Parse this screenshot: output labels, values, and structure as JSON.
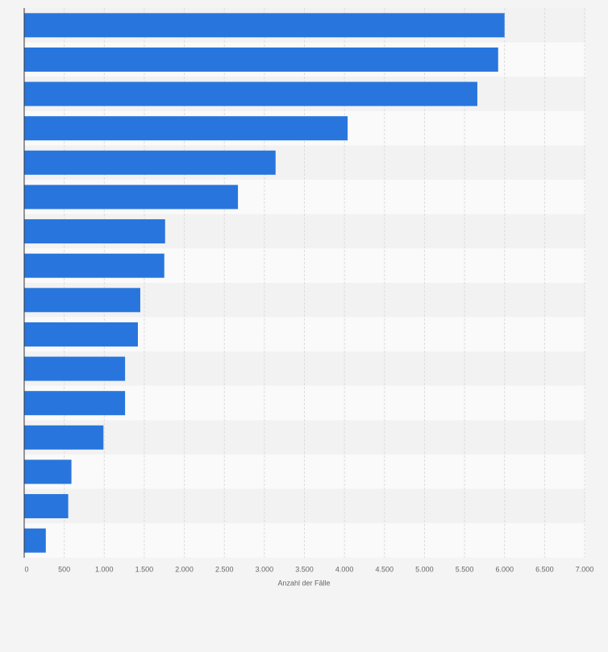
{
  "chart_data": {
    "type": "bar",
    "orientation": "horizontal",
    "x_label": "Anzahl der Fälle",
    "categories": [
      null,
      null,
      null,
      null,
      null,
      null,
      null,
      null,
      null,
      null,
      null,
      null,
      null,
      null,
      null,
      null
    ],
    "values": [
      6000,
      5920,
      5660,
      4040,
      3140,
      2670,
      1760,
      1750,
      1450,
      1420,
      1260,
      1260,
      990,
      590,
      550,
      270
    ],
    "color": "#2876dd",
    "xlim": [
      0,
      7000
    ],
    "xticks": [
      0,
      500,
      {
        "value": 1000,
        "label": "1.000"
      },
      {
        "value": 1500,
        "label": "1.500"
      },
      {
        "value": 2000,
        "label": "2.000"
      },
      {
        "value": 2500,
        "label": "2.500"
      },
      {
        "value": 3000,
        "label": "3.000"
      },
      {
        "value": 3500,
        "label": "3.500"
      },
      {
        "value": 4000,
        "label": "4.000"
      },
      {
        "value": 4500,
        "label": "4.500"
      },
      {
        "value": 5000,
        "label": "5.000"
      },
      {
        "value": 5500,
        "label": "5.500"
      },
      {
        "value": 6000,
        "label": "6.000"
      },
      {
        "value": 6500,
        "label": "6.500"
      },
      {
        "value": 7000,
        "label": "7.000"
      }
    ],
    "grid": true
  }
}
